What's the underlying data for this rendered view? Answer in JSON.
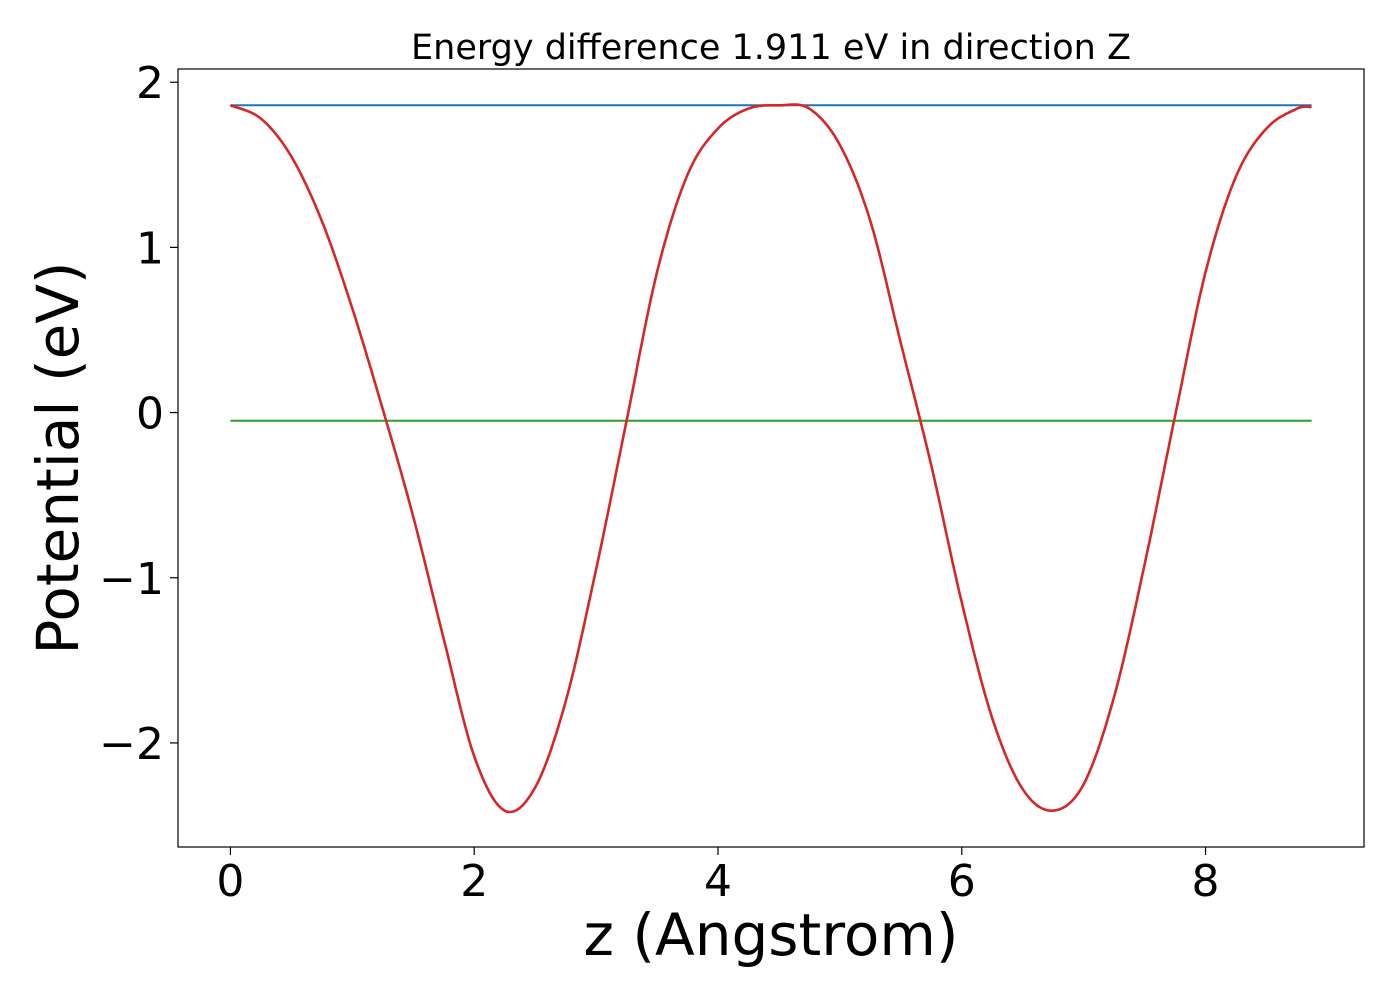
{
  "chart_data": {
    "type": "line",
    "title": "Energy difference 1.911 eV in direction Z",
    "xlabel": "z (Angstrom)",
    "ylabel": "Potential (eV)",
    "xlim": [
      -0.43,
      9.3
    ],
    "ylim": [
      -2.63,
      2.08
    ],
    "xticks": [
      0,
      2,
      4,
      6,
      8
    ],
    "xtick_labels": [
      "0",
      "2",
      "4",
      "6",
      "8"
    ],
    "yticks": [
      -2,
      -1,
      0,
      1,
      2
    ],
    "ytick_labels": [
      "−2",
      "−1",
      "0",
      "1",
      "2"
    ],
    "grid": false,
    "legend": "none",
    "series": [
      {
        "color": "#d62728",
        "x": [
          0,
          0.25,
          0.5,
          0.75,
          1.0,
          1.25,
          1.5,
          1.75,
          2.0,
          2.25,
          2.5,
          2.75,
          3.0,
          3.25,
          3.5,
          3.75,
          4.0,
          4.25,
          4.5,
          4.75,
          5.0,
          5.25,
          5.5,
          5.75,
          6.0,
          6.25,
          6.5,
          6.75,
          7.0,
          7.25,
          7.5,
          7.75,
          8.0,
          8.25,
          8.5,
          8.75,
          8.87
        ],
        "y": [
          1.86,
          1.78,
          1.55,
          1.16,
          0.63,
          0.02,
          -0.63,
          -1.37,
          -2.08,
          -2.41,
          -2.27,
          -1.75,
          -0.95,
          -0.05,
          0.85,
          1.44,
          1.72,
          1.84,
          1.86,
          1.84,
          1.62,
          1.16,
          0.42,
          -0.32,
          -1.15,
          -1.85,
          -2.28,
          -2.41,
          -2.25,
          -1.72,
          -0.92,
          -0.02,
          0.85,
          1.43,
          1.72,
          1.84,
          1.85
        ]
      },
      {
        "color": "#1f77b4",
        "x": [
          0,
          8.87
        ],
        "y": [
          1.86,
          1.86
        ]
      },
      {
        "color": "#2ca02c",
        "x": [
          0,
          8.87
        ],
        "y": [
          -0.05,
          -0.05
        ]
      }
    ]
  }
}
